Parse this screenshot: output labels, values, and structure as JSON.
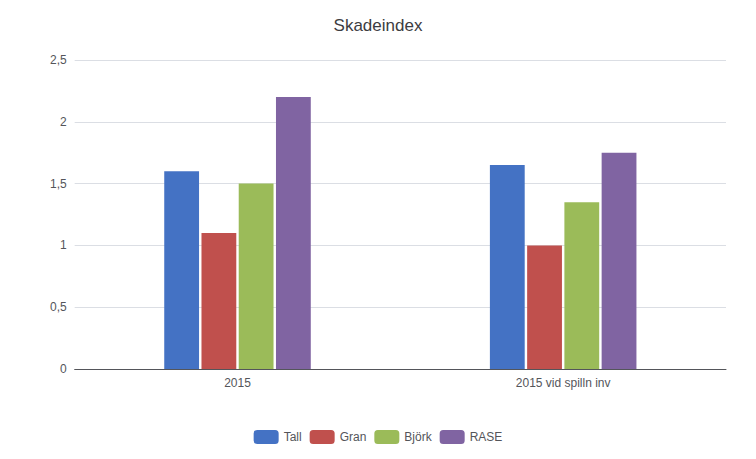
{
  "chart_data": {
    "type": "bar",
    "title": "Skadeindex",
    "categories": [
      "2015",
      "2015 vid spilln inv"
    ],
    "series": [
      {
        "name": "Tall",
        "color": "#4472C4",
        "values": [
          1.6,
          1.65
        ]
      },
      {
        "name": "Gran",
        "color": "#C0504D",
        "values": [
          1.1,
          1.0
        ]
      },
      {
        "name": "Björk",
        "color": "#9BBB59",
        "values": [
          1.5,
          1.35
        ]
      },
      {
        "name": "RASE",
        "color": "#8064A2",
        "values": [
          2.2,
          1.75
        ]
      }
    ],
    "ylim": [
      0,
      2.5
    ],
    "yticks": [
      0,
      {
        "value": 0.5,
        "label": "0,5"
      },
      1,
      {
        "value": 1.5,
        "label": "1,5"
      },
      2,
      {
        "value": 2.5,
        "label": "2,5"
      }
    ],
    "grid": true,
    "legend": "bottom"
  }
}
